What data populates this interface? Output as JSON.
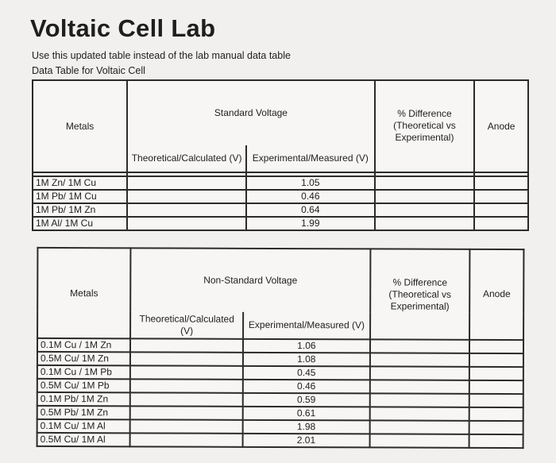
{
  "title": "Voltaic Cell Lab",
  "note": "Use this updated table instead of the lab manual data table",
  "table_caption": "Data Table for Voltaic Cell",
  "table1": {
    "metals_header": "Metals",
    "group_header": "Standard Voltage",
    "theoretical_header": "Theoretical/Calculated (V)",
    "experimental_header": "Experimental/Measured (V)",
    "difference_header": "% Difference (Theoretical vs Experimental)",
    "anode_header": "Anode",
    "rows": [
      {
        "metals": "1M Zn/ 1M Cu",
        "theoretical": "",
        "experimental": "1.05",
        "difference": "",
        "anode": ""
      },
      {
        "metals": "1M Pb/ 1M Cu",
        "theoretical": "",
        "experimental": "0.46",
        "difference": "",
        "anode": ""
      },
      {
        "metals": "1M Pb/ 1M Zn",
        "theoretical": "",
        "experimental": "0.64",
        "difference": "",
        "anode": ""
      },
      {
        "metals": "1M Al/ 1M Cu",
        "theoretical": "",
        "experimental": "1.99",
        "difference": "",
        "anode": ""
      }
    ]
  },
  "table2": {
    "metals_header": "Metals",
    "group_header": "Non-Standard Voltage",
    "theoretical_header": "Theoretical/Calculated (V)",
    "experimental_header": "Experimental/Measured (V)",
    "difference_header": "% Difference (Theoretical vs Experimental)",
    "anode_header": "Anode",
    "rows": [
      {
        "metals": "0.1M Cu / 1M Zn",
        "theoretical": "",
        "experimental": "1.06",
        "difference": "",
        "anode": ""
      },
      {
        "metals": "0.5M Cu/ 1M Zn",
        "theoretical": "",
        "experimental": "1.08",
        "difference": "",
        "anode": ""
      },
      {
        "metals": "0.1M Cu / 1M Pb",
        "theoretical": "",
        "experimental": "0.45",
        "difference": "",
        "anode": ""
      },
      {
        "metals": "0.5M Cu/ 1M Pb",
        "theoretical": "",
        "experimental": "0.46",
        "difference": "",
        "anode": ""
      },
      {
        "metals": "0.1M Pb/ 1M Zn",
        "theoretical": "",
        "experimental": "0.59",
        "difference": "",
        "anode": ""
      },
      {
        "metals": "0.5M Pb/ 1M Zn",
        "theoretical": "",
        "experimental": "0.61",
        "difference": "",
        "anode": ""
      },
      {
        "metals": "0.1M Cu/ 1M Al",
        "theoretical": "",
        "experimental": "1.98",
        "difference": "",
        "anode": ""
      },
      {
        "metals": "0.5M Cu/ 1M Al",
        "theoretical": "",
        "experimental": "2.01",
        "difference": "",
        "anode": ""
      }
    ]
  }
}
